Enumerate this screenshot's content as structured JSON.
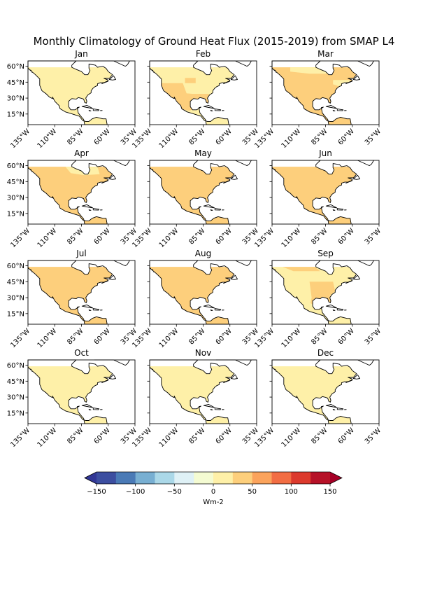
{
  "figure": {
    "title": "Monthly Climatology of Ground Heat Flux (2015-2019) from SMAP L4"
  },
  "colorbar": {
    "label": "Wm-2",
    "ticks": [
      -150,
      -100,
      -50,
      0,
      50,
      100,
      150
    ],
    "tick_labels": [
      "−150",
      "−100",
      "−50",
      "0",
      "50",
      "100",
      "150"
    ],
    "min": -150,
    "max": 150,
    "extend": "both",
    "colormap": "RdYlBu_r",
    "bin_colors": [
      "#3c4ea0",
      "#4a7ab6",
      "#78afd2",
      "#abd8e8",
      "#dff1f6",
      "#f4fbd2",
      "#fef0a8",
      "#fdcf7c",
      "#fba35c",
      "#f26d43",
      "#dc3a2d",
      "#b61127"
    ],
    "under_color": "#313695",
    "over_color": "#a50026"
  },
  "chart_data": {
    "type": "heatmap",
    "variable": "Ground Heat Flux",
    "units": "Wm-2",
    "period": "2015-2019",
    "projection": "PlateCarree",
    "xlim": [
      -135,
      -35
    ],
    "ylim": [
      5,
      65
    ],
    "x_ticks": [
      -135,
      -110,
      -85,
      -60,
      -35
    ],
    "x_tick_labels": [
      "135°W",
      "110°W",
      "85°W",
      "60°W",
      "35°W"
    ],
    "y_ticks": [
      15,
      30,
      45,
      60
    ],
    "y_tick_labels": [
      "15°N",
      "30°N",
      "45°N",
      "60°N"
    ],
    "panels": [
      {
        "month": "Jan",
        "dominant_bin": [
          -12.5,
          12.5
        ],
        "secondary_bin": null,
        "secondary_regions": []
      },
      {
        "month": "Feb",
        "dominant_bin": [
          -12.5,
          12.5
        ],
        "secondary_bin": [
          12.5,
          37.5
        ],
        "secondary_regions": [
          "south",
          "southwest",
          "florida",
          "scattered-central"
        ]
      },
      {
        "month": "Mar",
        "dominant_bin": [
          12.5,
          37.5
        ],
        "secondary_bin": [
          -12.5,
          12.5
        ],
        "secondary_regions": [
          "far-north",
          "northeast"
        ]
      },
      {
        "month": "Apr",
        "dominant_bin": [
          12.5,
          37.5
        ],
        "secondary_bin": [
          -12.5,
          12.5
        ],
        "secondary_regions": [
          "hudson-bay-area"
        ]
      },
      {
        "month": "May",
        "dominant_bin": [
          12.5,
          37.5
        ],
        "secondary_bin": null,
        "secondary_regions": []
      },
      {
        "month": "Jun",
        "dominant_bin": [
          12.5,
          37.5
        ],
        "secondary_bin": null,
        "secondary_regions": []
      },
      {
        "month": "Jul",
        "dominant_bin": [
          12.5,
          37.5
        ],
        "secondary_bin": null,
        "secondary_regions": []
      },
      {
        "month": "Aug",
        "dominant_bin": [
          12.5,
          37.5
        ],
        "secondary_bin": null,
        "secondary_regions": []
      },
      {
        "month": "Sep",
        "dominant_bin": [
          -12.5,
          12.5
        ],
        "secondary_bin": [
          12.5,
          37.5
        ],
        "secondary_regions": [
          "central-east",
          "southeast",
          "north"
        ]
      },
      {
        "month": "Oct",
        "dominant_bin": [
          -12.5,
          12.5
        ],
        "secondary_bin": null,
        "secondary_regions": []
      },
      {
        "month": "Nov",
        "dominant_bin": [
          -12.5,
          12.5
        ],
        "secondary_bin": null,
        "secondary_regions": []
      },
      {
        "month": "Dec",
        "dominant_bin": [
          -12.5,
          12.5
        ],
        "secondary_bin": null,
        "secondary_regions": []
      }
    ]
  }
}
